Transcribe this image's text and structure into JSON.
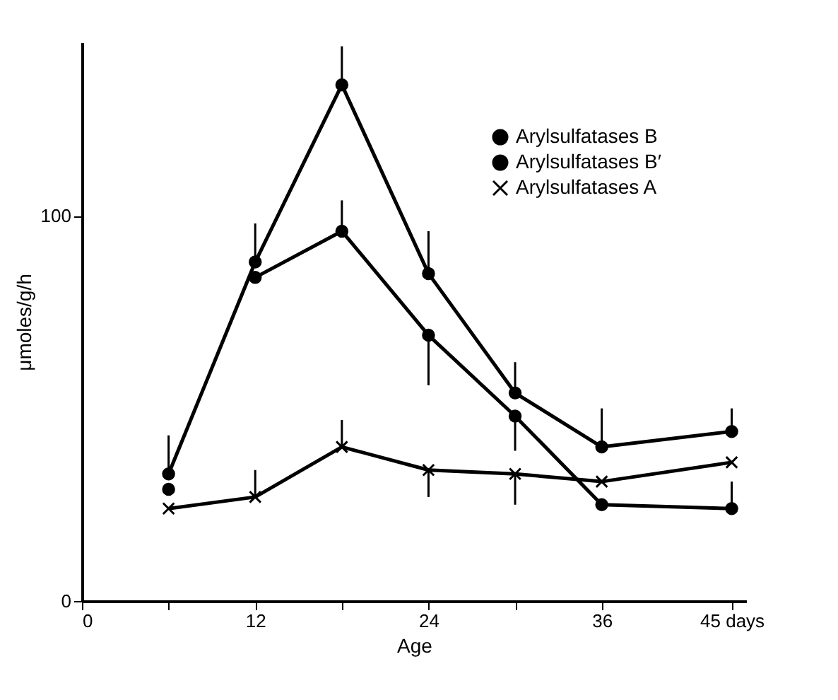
{
  "chart_data": {
    "type": "line",
    "xlabel": "Age",
    "ylabel": "μmoles/g/h",
    "x": [
      6,
      12,
      18,
      24,
      30,
      36,
      45
    ],
    "xlim": [
      0,
      46
    ],
    "xticks": [
      0,
      {
        "value": 6,
        "label": null
      },
      12,
      {
        "value": 18,
        "label": null
      },
      24,
      {
        "value": 30,
        "label": null
      },
      36,
      {
        "value": 45,
        "label": "45 days"
      }
    ],
    "ylim": [
      0,
      145
    ],
    "yticks": [
      0,
      100
    ],
    "series": [
      {
        "name": "Arylsulfatases B",
        "color": "#000000",
        "marker": "circle",
        "values": [
          33,
          88,
          134,
          85,
          54,
          40,
          44
        ],
        "errors": [
          [
            33,
            43
          ],
          [
            88,
            98
          ],
          [
            134,
            144
          ],
          [
            85,
            96
          ],
          [
            54,
            62
          ],
          [
            40,
            50
          ],
          [
            44,
            50
          ]
        ]
      },
      {
        "name": "Arylsulfatases B′",
        "color": "#000000",
        "marker": "circle",
        "values": [
          null,
          84,
          96,
          69,
          48,
          25,
          24
        ],
        "errors": [
          null,
          null,
          [
            96,
            104
          ],
          [
            56,
            69
          ],
          [
            39,
            48
          ],
          null,
          [
            24,
            31
          ]
        ]
      },
      {
        "name": "Arylsulfatases A",
        "color": "#000000",
        "marker": "cross",
        "values": [
          24,
          27,
          40,
          34,
          33,
          31,
          36
        ],
        "errors": [
          null,
          [
            27,
            34
          ],
          [
            40,
            47
          ],
          [
            27,
            34
          ],
          [
            25,
            33
          ],
          null,
          null
        ]
      },
      {
        "type": "scatter",
        "color": "#000000",
        "marker": "circle",
        "values": [
          29,
          null,
          null,
          null,
          null,
          null,
          null
        ]
      }
    ],
    "legend": "top right",
    "line_style": "solid",
    "grid": false
  }
}
